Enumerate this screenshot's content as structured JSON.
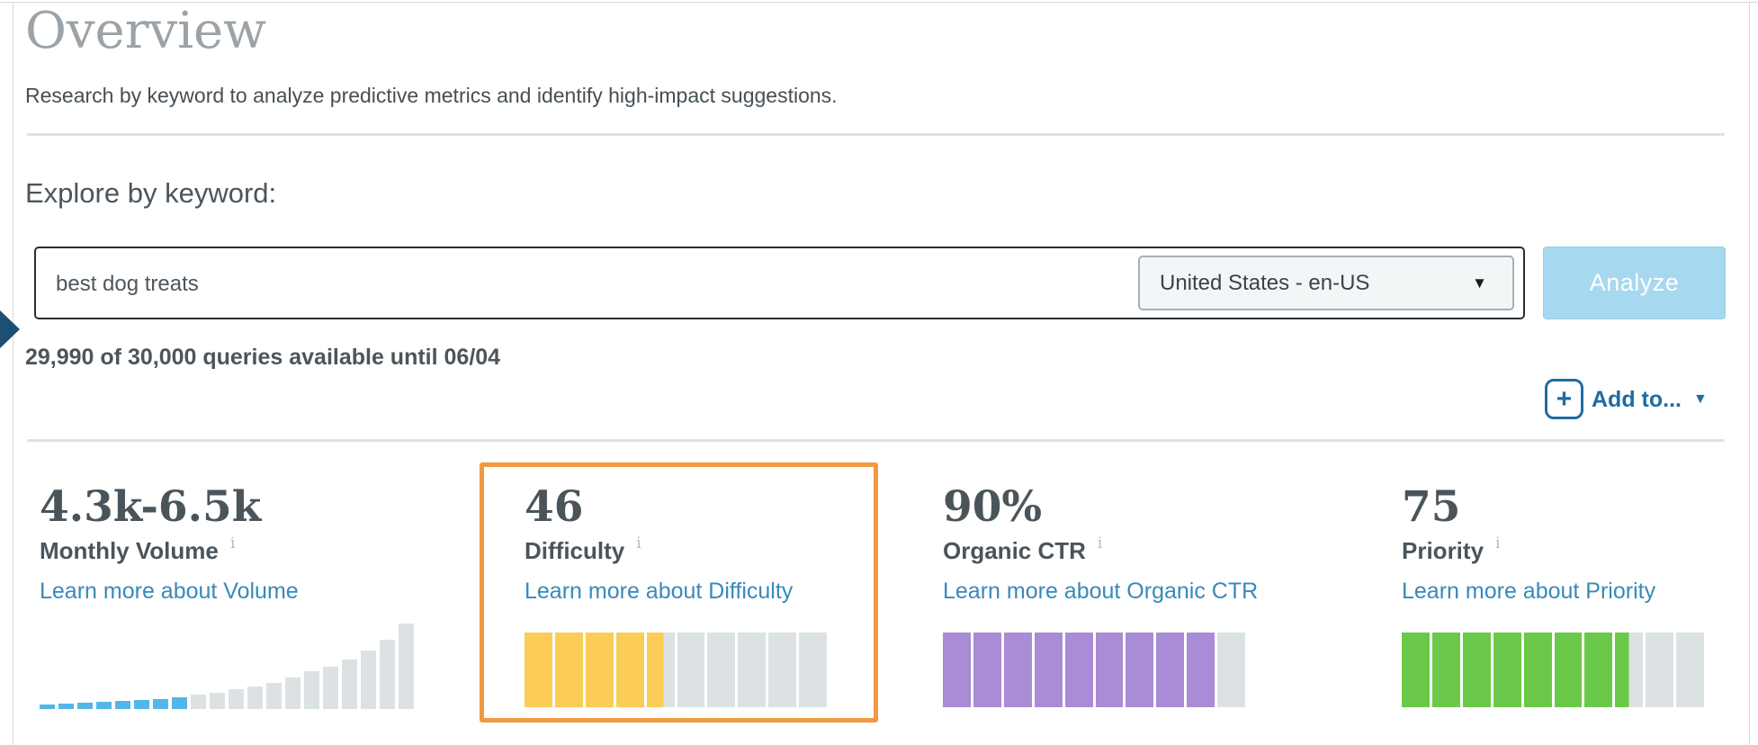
{
  "page": {
    "title": "Overview",
    "subtitle": "Research by keyword to analyze predictive metrics and identify high-impact suggestions."
  },
  "explore": {
    "heading": "Explore by keyword:",
    "keyword_input": {
      "value": "best dog treats"
    },
    "locale_select": {
      "value": "United States - en-US",
      "caret_icon": "▼"
    },
    "analyze_button": "Analyze",
    "quota_text": "29,990 of 30,000 queries available until 06/04",
    "add_to": {
      "label": "Add to...",
      "plus_icon": "+",
      "caret_icon": "▼"
    }
  },
  "icons": {
    "info": "i"
  },
  "colors": {
    "accent_blue": "#1e6ca3",
    "link_blue": "#3889ba",
    "highlight_orange": "#f0993e",
    "bar_blue": "#53b6e8",
    "bar_gray": "#dce2e4",
    "difficulty_yellow": "#fbcd56",
    "ctr_purple": "#a98bd6",
    "priority_green": "#6bc949",
    "analyze_bg": "#a6d8ef"
  },
  "metrics": {
    "cards": [
      {
        "id": "monthly-volume",
        "value": "4.3k-6.5k",
        "label": "Monthly Volume",
        "link": "Learn more about Volume",
        "chart": {
          "type": "histogram",
          "heights": [
            5,
            6,
            7,
            8,
            9,
            10,
            11,
            13,
            16,
            18,
            22,
            25,
            29,
            35,
            42,
            47,
            55,
            65,
            77,
            95
          ],
          "highlight_count": 8,
          "highlight_color": "#53b6e8",
          "rest_color": "#dce2e4"
        }
      },
      {
        "id": "difficulty",
        "value": "46",
        "label": "Difficulty",
        "link": "Learn more about Difficulty",
        "highlighted": true,
        "meter": {
          "segments": 10,
          "value": 46,
          "color": "#fbcd56",
          "empty_color": "#dce2e4"
        }
      },
      {
        "id": "organic-ctr",
        "value": "90%",
        "label": "Organic CTR",
        "link": "Learn more about Organic CTR",
        "meter": {
          "segments": 10,
          "value": 90,
          "color": "#a98bd6",
          "empty_color": "#dce2e4"
        }
      },
      {
        "id": "priority",
        "value": "75",
        "label": "Priority",
        "link": "Learn more about Priority",
        "meter": {
          "segments": 10,
          "value": 75,
          "color": "#6bc949",
          "empty_color": "#dce2e4"
        }
      }
    ]
  }
}
